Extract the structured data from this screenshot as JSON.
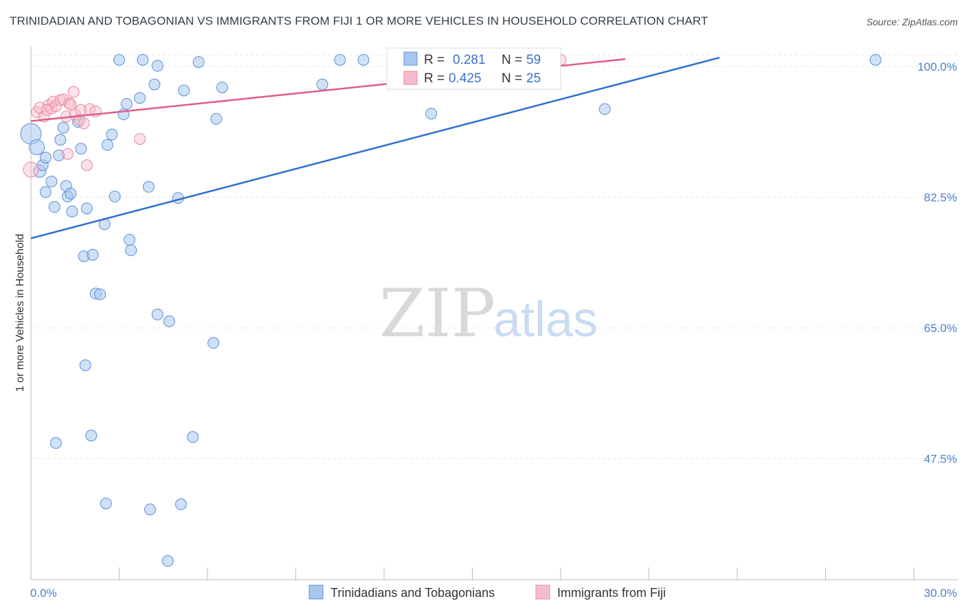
{
  "header": {
    "title": "TRINIDADIAN AND TOBAGONIAN VS IMMIGRANTS FROM FIJI 1 OR MORE VEHICLES IN HOUSEHOLD CORRELATION CHART",
    "source": "Source: ZipAtlas.com"
  },
  "watermark": {
    "zip": "ZIP",
    "atlas": "atlas"
  },
  "legend": {
    "rows": [
      {
        "r_label": "R =",
        "r_value": "0.281",
        "n_label": "N =",
        "n_value": "59"
      },
      {
        "r_label": "R =",
        "r_value": "0.425",
        "n_label": "N =",
        "n_value": "25"
      }
    ]
  },
  "bottom_legend": {
    "items": [
      {
        "label": "Trinidadians and Tobagonians"
      },
      {
        "label": "Immigrants from Fiji"
      }
    ]
  },
  "chart_data": {
    "type": "scatter",
    "title": "TRINIDADIAN AND TOBAGONIAN VS IMMIGRANTS FROM FIJI 1 OR MORE VEHICLES IN HOUSEHOLD CORRELATION CHART",
    "ylabel": "1 or more Vehicles in Household",
    "xlabel": "",
    "xlim": [
      0.0,
      30.0
    ],
    "ylim": [
      35.0,
      101.5
    ],
    "x_tick_labels": [
      "0.0%",
      "30.0%"
    ],
    "y_ticks": [
      47.5,
      65.0,
      82.5,
      100.0
    ],
    "y_tick_labels": [
      "47.5%",
      "65.0%",
      "82.5%",
      "100.0%"
    ],
    "grid": true,
    "legend_position": "top-center",
    "colors": {
      "series1_fill": "#a9c6ee",
      "series1_stroke": "#5b8fd6",
      "series1_line": "#2f6fcf",
      "series2_fill": "#f6bccd",
      "series2_stroke": "#e6889f",
      "series2_line": "#e05b86",
      "tick_label": "#4a7fd4"
    },
    "series": [
      {
        "name": "Trinidadians and Tobagonians",
        "r": 0.281,
        "n": 59,
        "trend": {
          "x": [
            0.0,
            23.4
          ],
          "y": [
            77.0,
            101.2
          ]
        },
        "points": [
          {
            "x": 0.0,
            "y": 91.0,
            "s": 30
          },
          {
            "x": 0.2,
            "y": 89.2,
            "s": 22
          },
          {
            "x": 0.3,
            "y": 86.0,
            "s": 18
          },
          {
            "x": 0.4,
            "y": 86.8,
            "s": 16
          },
          {
            "x": 0.5,
            "y": 87.8,
            "s": 16
          },
          {
            "x": 0.5,
            "y": 83.2,
            "s": 16
          },
          {
            "x": 0.7,
            "y": 84.6,
            "s": 16
          },
          {
            "x": 0.8,
            "y": 81.2,
            "s": 16
          },
          {
            "x": 1.0,
            "y": 90.2,
            "s": 16
          },
          {
            "x": 1.1,
            "y": 91.8,
            "s": 16
          },
          {
            "x": 1.2,
            "y": 84.0,
            "s": 16
          },
          {
            "x": 1.25,
            "y": 82.6,
            "s": 16
          },
          {
            "x": 1.35,
            "y": 83.0,
            "s": 16
          },
          {
            "x": 1.4,
            "y": 80.6,
            "s": 16
          },
          {
            "x": 1.7,
            "y": 89.0,
            "s": 16
          },
          {
            "x": 1.8,
            "y": 74.6,
            "s": 16
          },
          {
            "x": 1.9,
            "y": 81.0,
            "s": 16
          },
          {
            "x": 2.1,
            "y": 74.8,
            "s": 16
          },
          {
            "x": 2.2,
            "y": 69.6,
            "s": 16
          },
          {
            "x": 2.35,
            "y": 69.5,
            "s": 16
          },
          {
            "x": 2.5,
            "y": 78.9,
            "s": 16
          },
          {
            "x": 2.6,
            "y": 89.5,
            "s": 16
          },
          {
            "x": 2.75,
            "y": 90.9,
            "s": 16
          },
          {
            "x": 2.85,
            "y": 82.6,
            "s": 16
          },
          {
            "x": 3.0,
            "y": 100.9,
            "s": 16
          },
          {
            "x": 3.15,
            "y": 93.6,
            "s": 16
          },
          {
            "x": 3.25,
            "y": 95.0,
            "s": 16
          },
          {
            "x": 3.35,
            "y": 76.8,
            "s": 16
          },
          {
            "x": 3.4,
            "y": 75.4,
            "s": 16
          },
          {
            "x": 3.7,
            "y": 95.8,
            "s": 16
          },
          {
            "x": 3.8,
            "y": 100.9,
            "s": 16
          },
          {
            "x": 4.0,
            "y": 83.9,
            "s": 16
          },
          {
            "x": 4.2,
            "y": 97.6,
            "s": 16
          },
          {
            "x": 4.3,
            "y": 100.1,
            "s": 16
          },
          {
            "x": 4.3,
            "y": 66.8,
            "s": 16
          },
          {
            "x": 4.7,
            "y": 65.9,
            "s": 16
          },
          {
            "x": 5.0,
            "y": 82.4,
            "s": 16
          },
          {
            "x": 5.2,
            "y": 96.8,
            "s": 16
          },
          {
            "x": 5.7,
            "y": 100.6,
            "s": 16
          },
          {
            "x": 6.2,
            "y": 63.0,
            "s": 16
          },
          {
            "x": 6.3,
            "y": 93.0,
            "s": 16
          },
          {
            "x": 6.5,
            "y": 97.2,
            "s": 16
          },
          {
            "x": 9.9,
            "y": 97.6,
            "s": 16
          },
          {
            "x": 10.5,
            "y": 100.9,
            "s": 16
          },
          {
            "x": 11.3,
            "y": 100.9,
            "s": 16
          },
          {
            "x": 12.6,
            "y": 100.3,
            "s": 16
          },
          {
            "x": 13.6,
            "y": 93.7,
            "s": 16
          },
          {
            "x": 1.85,
            "y": 60.0,
            "s": 16
          },
          {
            "x": 0.85,
            "y": 49.6,
            "s": 16
          },
          {
            "x": 2.05,
            "y": 50.6,
            "s": 16
          },
          {
            "x": 5.5,
            "y": 50.4,
            "s": 16
          },
          {
            "x": 2.55,
            "y": 41.5,
            "s": 16
          },
          {
            "x": 4.05,
            "y": 40.7,
            "s": 16
          },
          {
            "x": 5.1,
            "y": 41.4,
            "s": 16
          },
          {
            "x": 4.65,
            "y": 33.8,
            "s": 16
          },
          {
            "x": 19.5,
            "y": 94.3,
            "s": 16
          },
          {
            "x": 28.7,
            "y": 100.9,
            "s": 16
          },
          {
            "x": 1.6,
            "y": 92.6,
            "s": 16
          },
          {
            "x": 0.95,
            "y": 88.1,
            "s": 16
          }
        ]
      },
      {
        "name": "Immigrants from Fiji",
        "r": 0.425,
        "n": 25,
        "trend": {
          "x": [
            0.0,
            20.2
          ],
          "y": [
            92.7,
            101.0
          ]
        },
        "points": [
          {
            "x": 0.0,
            "y": 86.2,
            "s": 22
          },
          {
            "x": 0.2,
            "y": 93.9,
            "s": 16
          },
          {
            "x": 0.3,
            "y": 94.5,
            "s": 16
          },
          {
            "x": 0.45,
            "y": 93.3,
            "s": 16
          },
          {
            "x": 0.6,
            "y": 94.8,
            "s": 16
          },
          {
            "x": 0.7,
            "y": 94.4,
            "s": 16
          },
          {
            "x": 0.75,
            "y": 95.3,
            "s": 16
          },
          {
            "x": 0.85,
            "y": 94.7,
            "s": 16
          },
          {
            "x": 1.0,
            "y": 95.5,
            "s": 16
          },
          {
            "x": 1.1,
            "y": 95.6,
            "s": 16
          },
          {
            "x": 1.2,
            "y": 93.3,
            "s": 16
          },
          {
            "x": 1.3,
            "y": 95.1,
            "s": 16
          },
          {
            "x": 1.25,
            "y": 88.3,
            "s": 16
          },
          {
            "x": 1.45,
            "y": 96.6,
            "s": 16
          },
          {
            "x": 1.5,
            "y": 93.6,
            "s": 16
          },
          {
            "x": 1.65,
            "y": 92.9,
            "s": 16
          },
          {
            "x": 1.7,
            "y": 94.2,
            "s": 16
          },
          {
            "x": 1.8,
            "y": 92.4,
            "s": 16
          },
          {
            "x": 1.9,
            "y": 86.8,
            "s": 16
          },
          {
            "x": 2.0,
            "y": 94.3,
            "s": 16
          },
          {
            "x": 2.2,
            "y": 94.0,
            "s": 16
          },
          {
            "x": 3.7,
            "y": 90.3,
            "s": 16
          },
          {
            "x": 18.0,
            "y": 100.9,
            "s": 16
          },
          {
            "x": 0.55,
            "y": 94.2,
            "s": 16
          },
          {
            "x": 1.35,
            "y": 94.9,
            "s": 16
          }
        ]
      }
    ]
  }
}
